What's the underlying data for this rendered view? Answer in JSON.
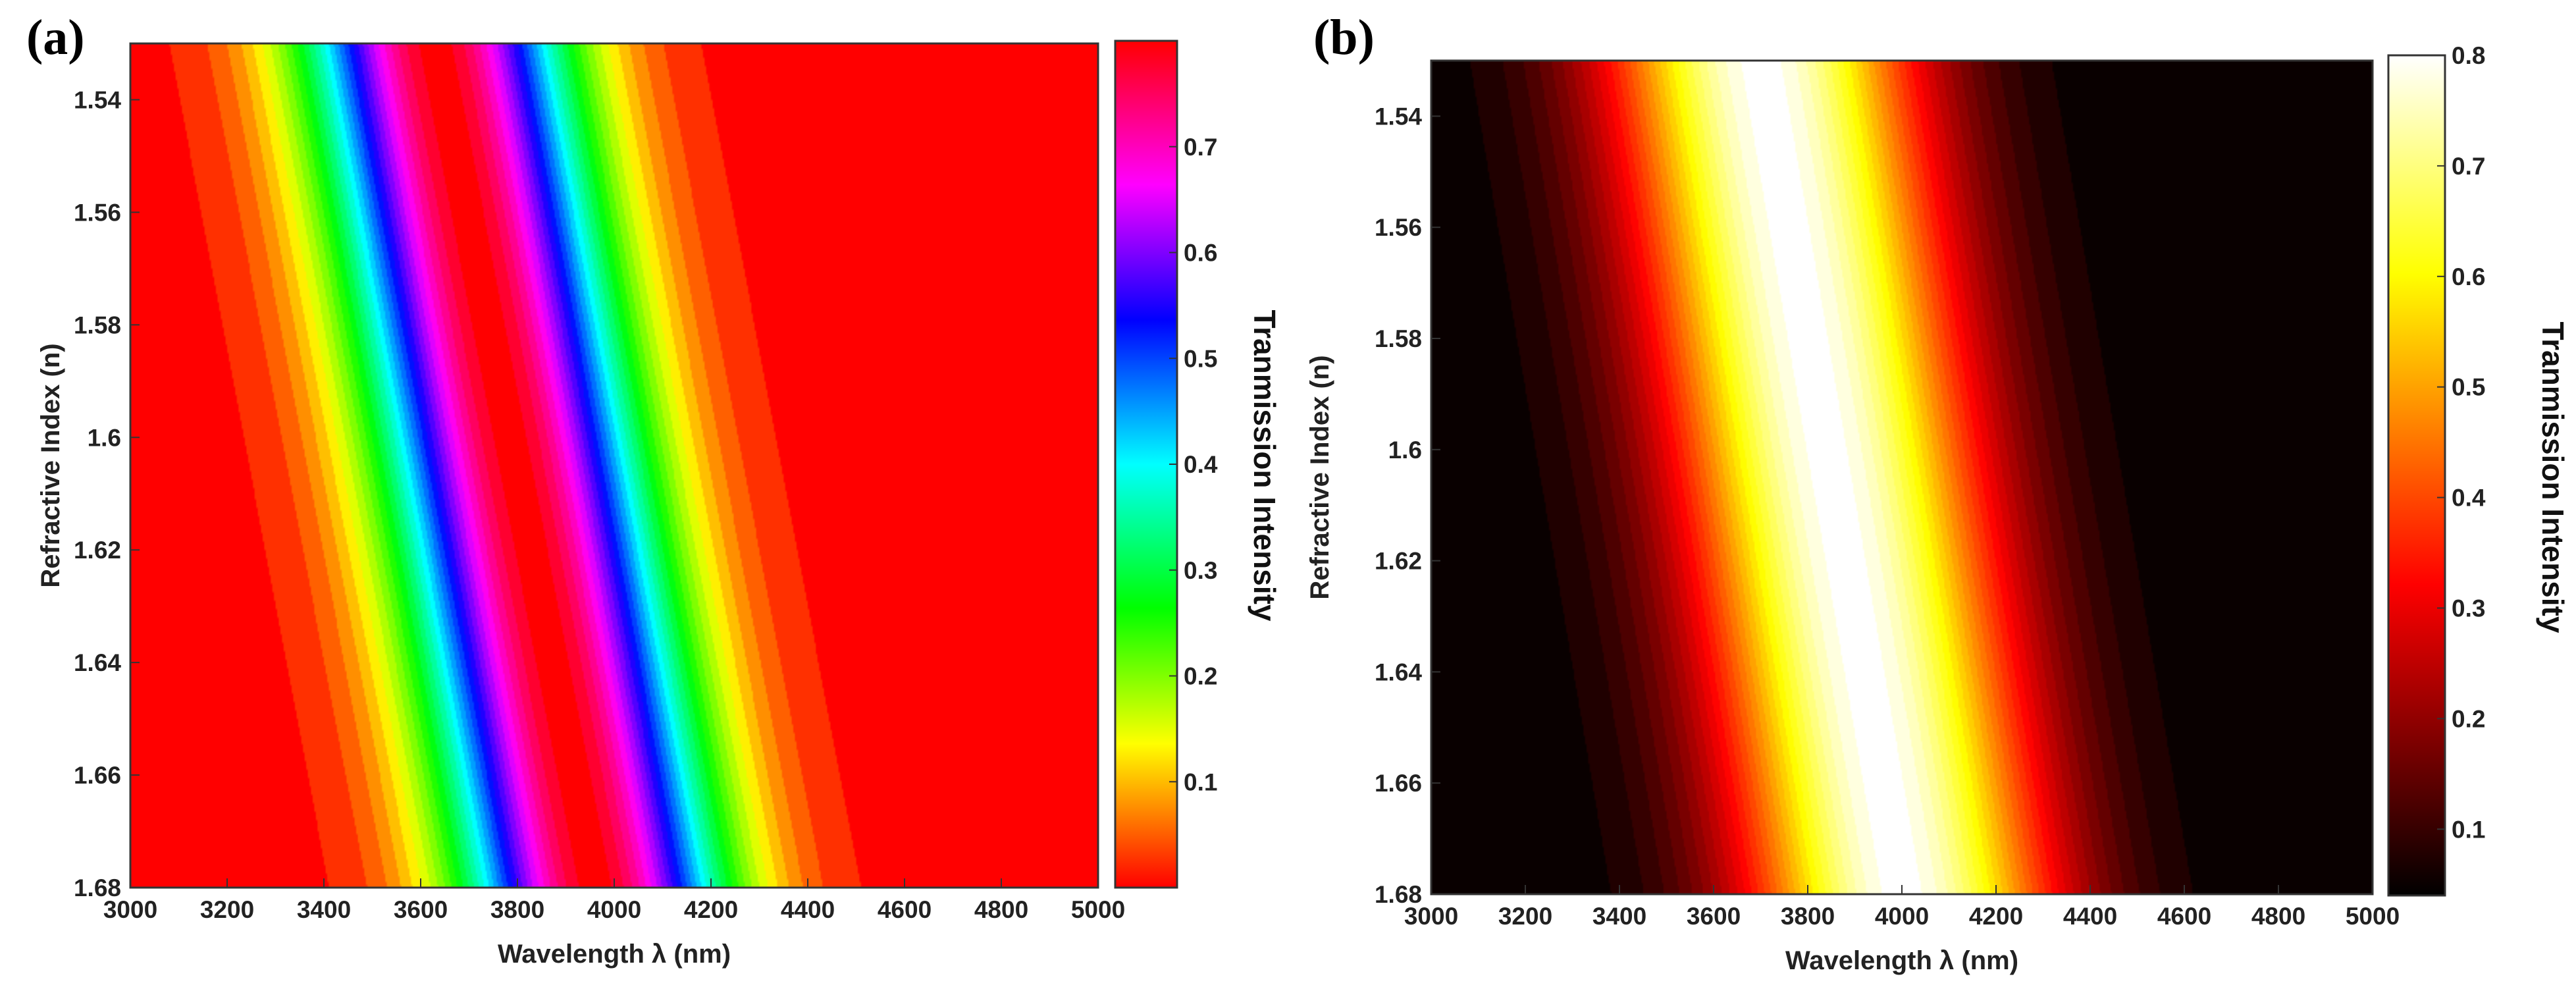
{
  "chart_data": [
    {
      "type": "heatmap",
      "panel_label": "(a)",
      "colormap": "hsv",
      "xlabel": "Wavelength λ (nm)",
      "ylabel": "Refractive Index (n)",
      "colorbar_label": "Tranmission Intensity",
      "xlim": [
        3000,
        5000
      ],
      "ylim": [
        1.53,
        1.68
      ],
      "x_ticks": [
        "3000",
        "3200",
        "3400",
        "3600",
        "3800",
        "4000",
        "4200",
        "4400",
        "4600",
        "4800",
        "5000"
      ],
      "y_ticks": [
        "1.54",
        "1.56",
        "1.58",
        "1.6",
        "1.62",
        "1.64",
        "1.66",
        "1.68"
      ],
      "y_tick_values": [
        1.54,
        1.56,
        1.58,
        1.6,
        1.62,
        1.64,
        1.66,
        1.68
      ],
      "colorbar_ticks": [
        "0.1",
        "0.2",
        "0.3",
        "0.4",
        "0.5",
        "0.6",
        "0.7"
      ],
      "colorbar_tick_values": [
        0.1,
        0.2,
        0.3,
        0.4,
        0.5,
        0.6,
        0.7
      ],
      "clim": [
        0.0,
        0.8
      ],
      "peak_wavelength_at_n_min": 3630,
      "peak_wavelength_at_n_max": 3960,
      "peak_value": 0.8,
      "base_value": 0.0
    },
    {
      "type": "heatmap",
      "panel_label": "(b)",
      "colormap": "hot",
      "xlabel": "Wavelength λ (nm)",
      "ylabel": "Refractive Index (n)",
      "colorbar_label": "Tranmission Intensity",
      "xlim": [
        3000,
        5000
      ],
      "ylim": [
        1.53,
        1.68
      ],
      "x_ticks": [
        "3000",
        "3200",
        "3400",
        "3600",
        "3800",
        "4000",
        "4200",
        "4400",
        "4600",
        "4800",
        "5000"
      ],
      "y_ticks": [
        "1.54",
        "1.56",
        "1.58",
        "1.6",
        "1.62",
        "1.64",
        "1.66",
        "1.68"
      ],
      "y_tick_values": [
        1.54,
        1.56,
        1.58,
        1.6,
        1.62,
        1.64,
        1.66,
        1.68
      ],
      "colorbar_ticks": [
        "0.1",
        "0.2",
        "0.3",
        "0.4",
        "0.5",
        "0.6",
        "0.7",
        "0.8"
      ],
      "colorbar_tick_values": [
        0.1,
        0.2,
        0.3,
        0.4,
        0.5,
        0.6,
        0.7,
        0.8
      ],
      "clim": [
        0.04,
        0.8
      ],
      "peak_wavelength_at_n_min": 3700,
      "peak_wavelength_at_n_max": 4000,
      "peak_value": 0.8,
      "base_value": 0.04
    }
  ]
}
